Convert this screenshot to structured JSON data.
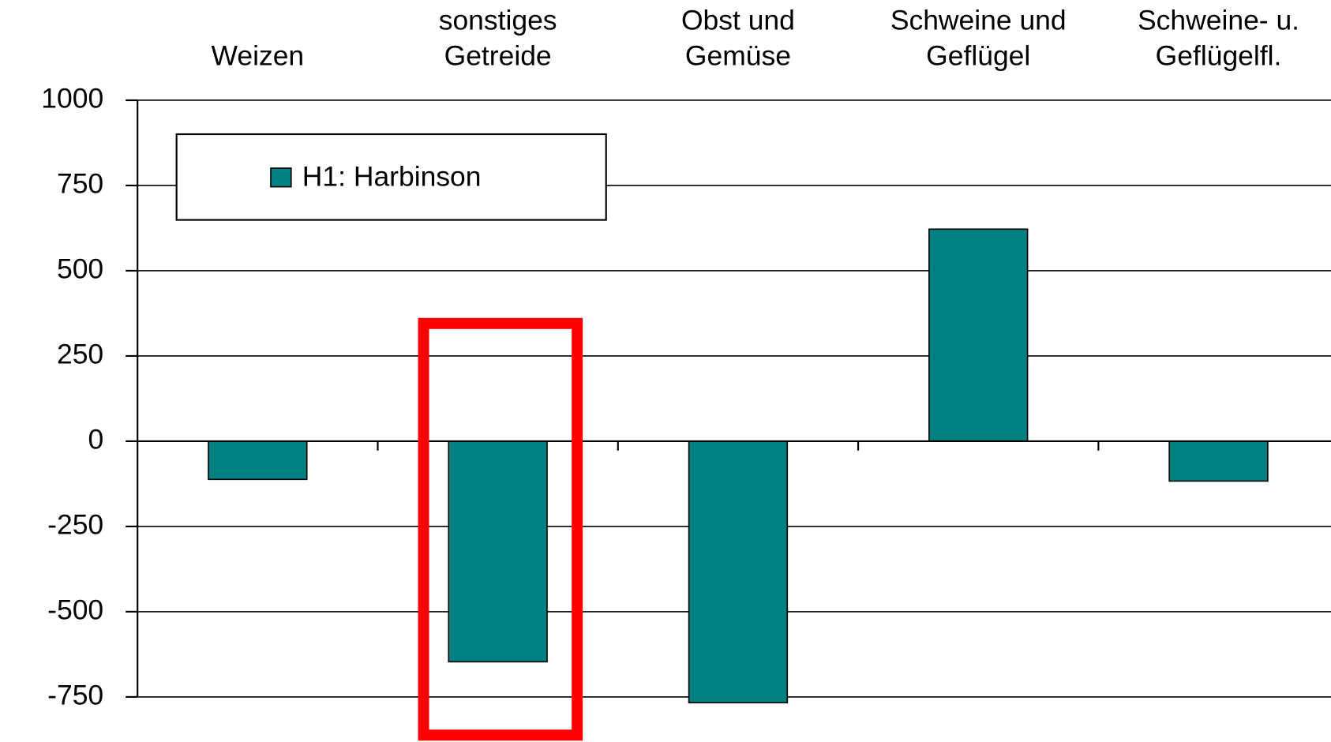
{
  "chart_data": {
    "type": "bar",
    "categories": [
      [
        "Weizen"
      ],
      [
        "sonstiges",
        "Getreide"
      ],
      [
        "Obst und",
        "Gemüse"
      ],
      [
        "Schweine und",
        "Geflügel"
      ],
      [
        "Schweine- u.",
        "Geflügelfl."
      ]
    ],
    "series": [
      {
        "name": "H1: Harbinson",
        "color": "#008080",
        "values": [
          -112,
          -647,
          -767,
          622,
          -117
        ]
      }
    ],
    "ylim": [
      -750,
      1000
    ],
    "yticks": [
      -750,
      -500,
      -250,
      0,
      250,
      500,
      750,
      1000
    ],
    "grid": true,
    "legend": "upper left"
  }
}
